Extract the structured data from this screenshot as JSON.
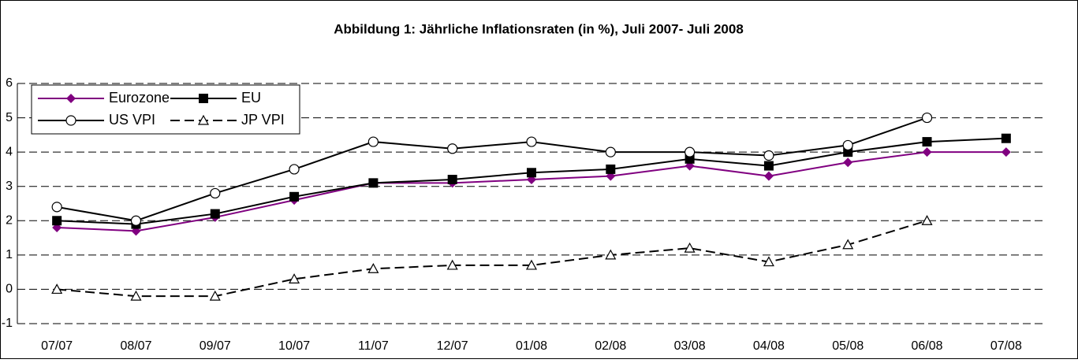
{
  "chart_data": {
    "type": "line",
    "title": "Abbildung 1: Jährliche Inflationsraten (in %), Juli 2007- Juli 2008",
    "categories": [
      "07/07",
      "08/07",
      "09/07",
      "10/07",
      "11/07",
      "12/07",
      "01/08",
      "02/08",
      "03/08",
      "04/08",
      "05/08",
      "06/08",
      "07/08"
    ],
    "series": [
      {
        "name": "Eurozone",
        "color": "#800080",
        "marker": "diamond",
        "dashed": false,
        "values": [
          1.8,
          1.7,
          2.1,
          2.6,
          3.1,
          3.1,
          3.2,
          3.3,
          3.6,
          3.3,
          3.7,
          4.0,
          4.0
        ]
      },
      {
        "name": "EU",
        "color": "#000000",
        "marker": "square",
        "dashed": false,
        "values": [
          2.0,
          1.9,
          2.2,
          2.7,
          3.1,
          3.2,
          3.4,
          3.5,
          3.8,
          3.6,
          4.0,
          4.3,
          4.4
        ]
      },
      {
        "name": "US VPI",
        "color": "#000000",
        "marker": "circle",
        "dashed": false,
        "values": [
          2.4,
          2.0,
          2.8,
          3.5,
          4.3,
          4.1,
          4.3,
          4.0,
          4.0,
          3.9,
          4.2,
          5.0,
          null
        ]
      },
      {
        "name": "JP VPI",
        "color": "#000000",
        "marker": "triangle",
        "dashed": true,
        "values": [
          0,
          -0.2,
          -0.2,
          0.3,
          0.6,
          0.7,
          0.7,
          1.0,
          1.2,
          0.8,
          1.3,
          2.0,
          null
        ]
      }
    ],
    "ylim": [
      -1,
      6
    ],
    "yticks": [
      -1,
      0,
      1,
      2,
      3,
      4,
      5,
      6
    ],
    "grid": true,
    "legend": "upper left"
  }
}
